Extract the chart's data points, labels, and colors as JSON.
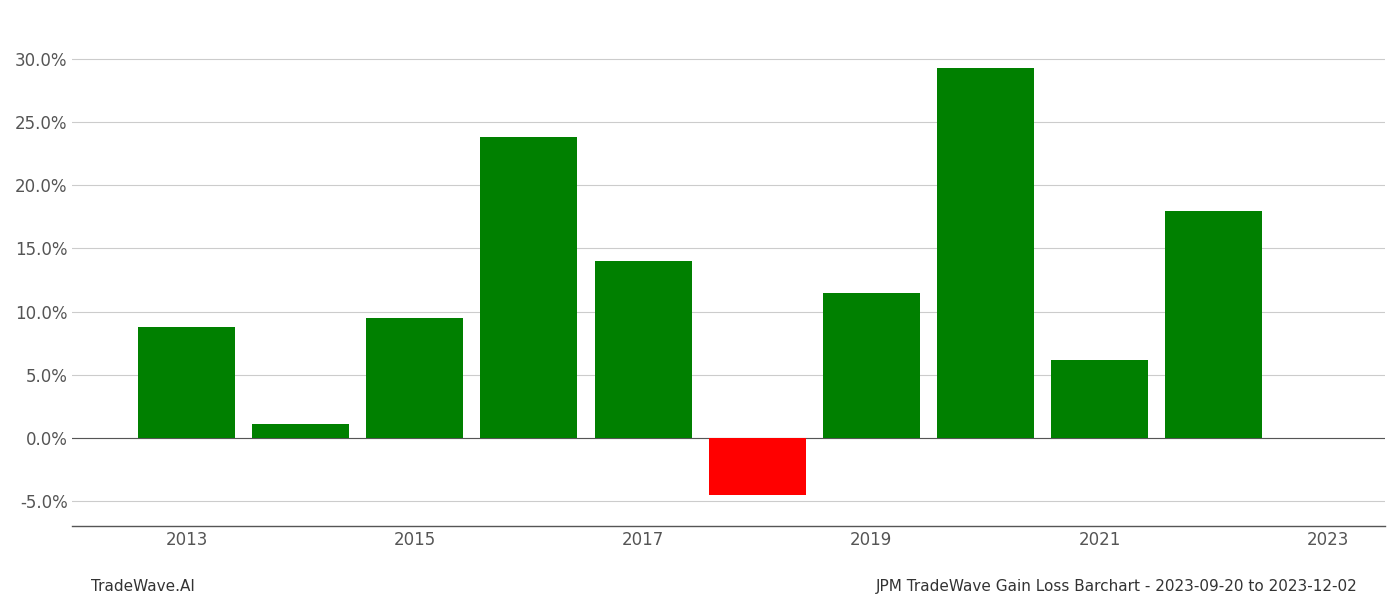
{
  "years": [
    2013,
    2014,
    2015,
    2016,
    2017,
    2018,
    2019,
    2020,
    2021,
    2022
  ],
  "values": [
    0.088,
    0.011,
    0.095,
    0.238,
    0.14,
    -0.045,
    0.115,
    0.293,
    0.062,
    0.18
  ],
  "colors": [
    "#008000",
    "#008000",
    "#008000",
    "#008000",
    "#008000",
    "#ff0000",
    "#008000",
    "#008000",
    "#008000",
    "#008000"
  ],
  "bar_width": 0.85,
  "ylim": [
    -0.07,
    0.335
  ],
  "yticks": [
    -0.05,
    0.0,
    0.05,
    0.1,
    0.15,
    0.2,
    0.25,
    0.3
  ],
  "xticks": [
    2013,
    2015,
    2017,
    2019,
    2021,
    2023
  ],
  "xlim": [
    2012.0,
    2023.5
  ],
  "footer_left": "TradeWave.AI",
  "footer_right": "JPM TradeWave Gain Loss Barchart - 2023-09-20 to 2023-12-02",
  "background_color": "#ffffff",
  "grid_color": "#cccccc",
  "spine_color": "#555555",
  "tick_label_color": "#555555",
  "footer_fontsize": 11,
  "axis_fontsize": 12
}
